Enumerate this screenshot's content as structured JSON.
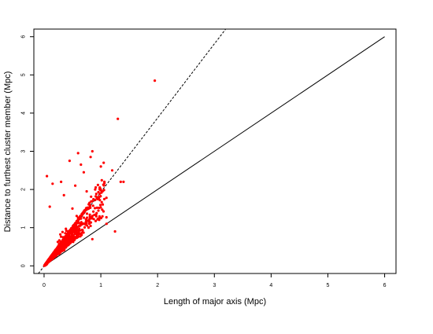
{
  "chart_data": {
    "type": "scatter",
    "title": "",
    "xlabel": "Length of major axis (Mpc)",
    "ylabel": "Distance to furthest cluster member (Mpc)",
    "xlim": [
      -0.18,
      6.2
    ],
    "ylim": [
      -0.2,
      6.2
    ],
    "x_ticks": [
      0,
      1,
      2,
      3,
      4,
      5,
      6
    ],
    "y_ticks": [
      0,
      1,
      2,
      3,
      4,
      5,
      6
    ],
    "grid": false,
    "legend": "none",
    "point_color": "#ff0000",
    "reference_lines": [
      {
        "style": "solid",
        "x": [
          0,
          6
        ],
        "y": [
          0,
          6
        ]
      },
      {
        "style": "dashed",
        "x": [
          -0.1,
          3.2
        ],
        "y": [
          -0.2,
          6.2
        ]
      }
    ],
    "outliers": [
      {
        "x": 1.95,
        "y": 4.85
      },
      {
        "x": 1.3,
        "y": 3.85
      },
      {
        "x": 0.85,
        "y": 3.0
      },
      {
        "x": 0.05,
        "y": 2.35
      },
      {
        "x": 0.45,
        "y": 2.75
      },
      {
        "x": 0.65,
        "y": 2.65
      },
      {
        "x": 1.0,
        "y": 2.6
      },
      {
        "x": 1.05,
        "y": 2.7
      },
      {
        "x": 1.35,
        "y": 2.2
      },
      {
        "x": 1.4,
        "y": 2.2
      },
      {
        "x": 1.2,
        "y": 2.5
      },
      {
        "x": 1.25,
        "y": 0.9
      },
      {
        "x": 0.9,
        "y": 2.0
      },
      {
        "x": 0.95,
        "y": 1.8
      },
      {
        "x": 0.1,
        "y": 1.55
      },
      {
        "x": 0.3,
        "y": 2.2
      },
      {
        "x": 0.55,
        "y": 2.1
      },
      {
        "x": 0.7,
        "y": 2.45
      },
      {
        "x": 0.75,
        "y": 1.95
      },
      {
        "x": 0.8,
        "y": 1.65
      },
      {
        "x": 0.82,
        "y": 2.85
      },
      {
        "x": 0.6,
        "y": 2.95
      },
      {
        "x": 0.35,
        "y": 1.85
      },
      {
        "x": 0.85,
        "y": 0.7
      },
      {
        "x": 1.1,
        "y": 1.1
      },
      {
        "x": 0.15,
        "y": 2.15
      },
      {
        "x": 0.5,
        "y": 1.5
      }
    ]
  }
}
